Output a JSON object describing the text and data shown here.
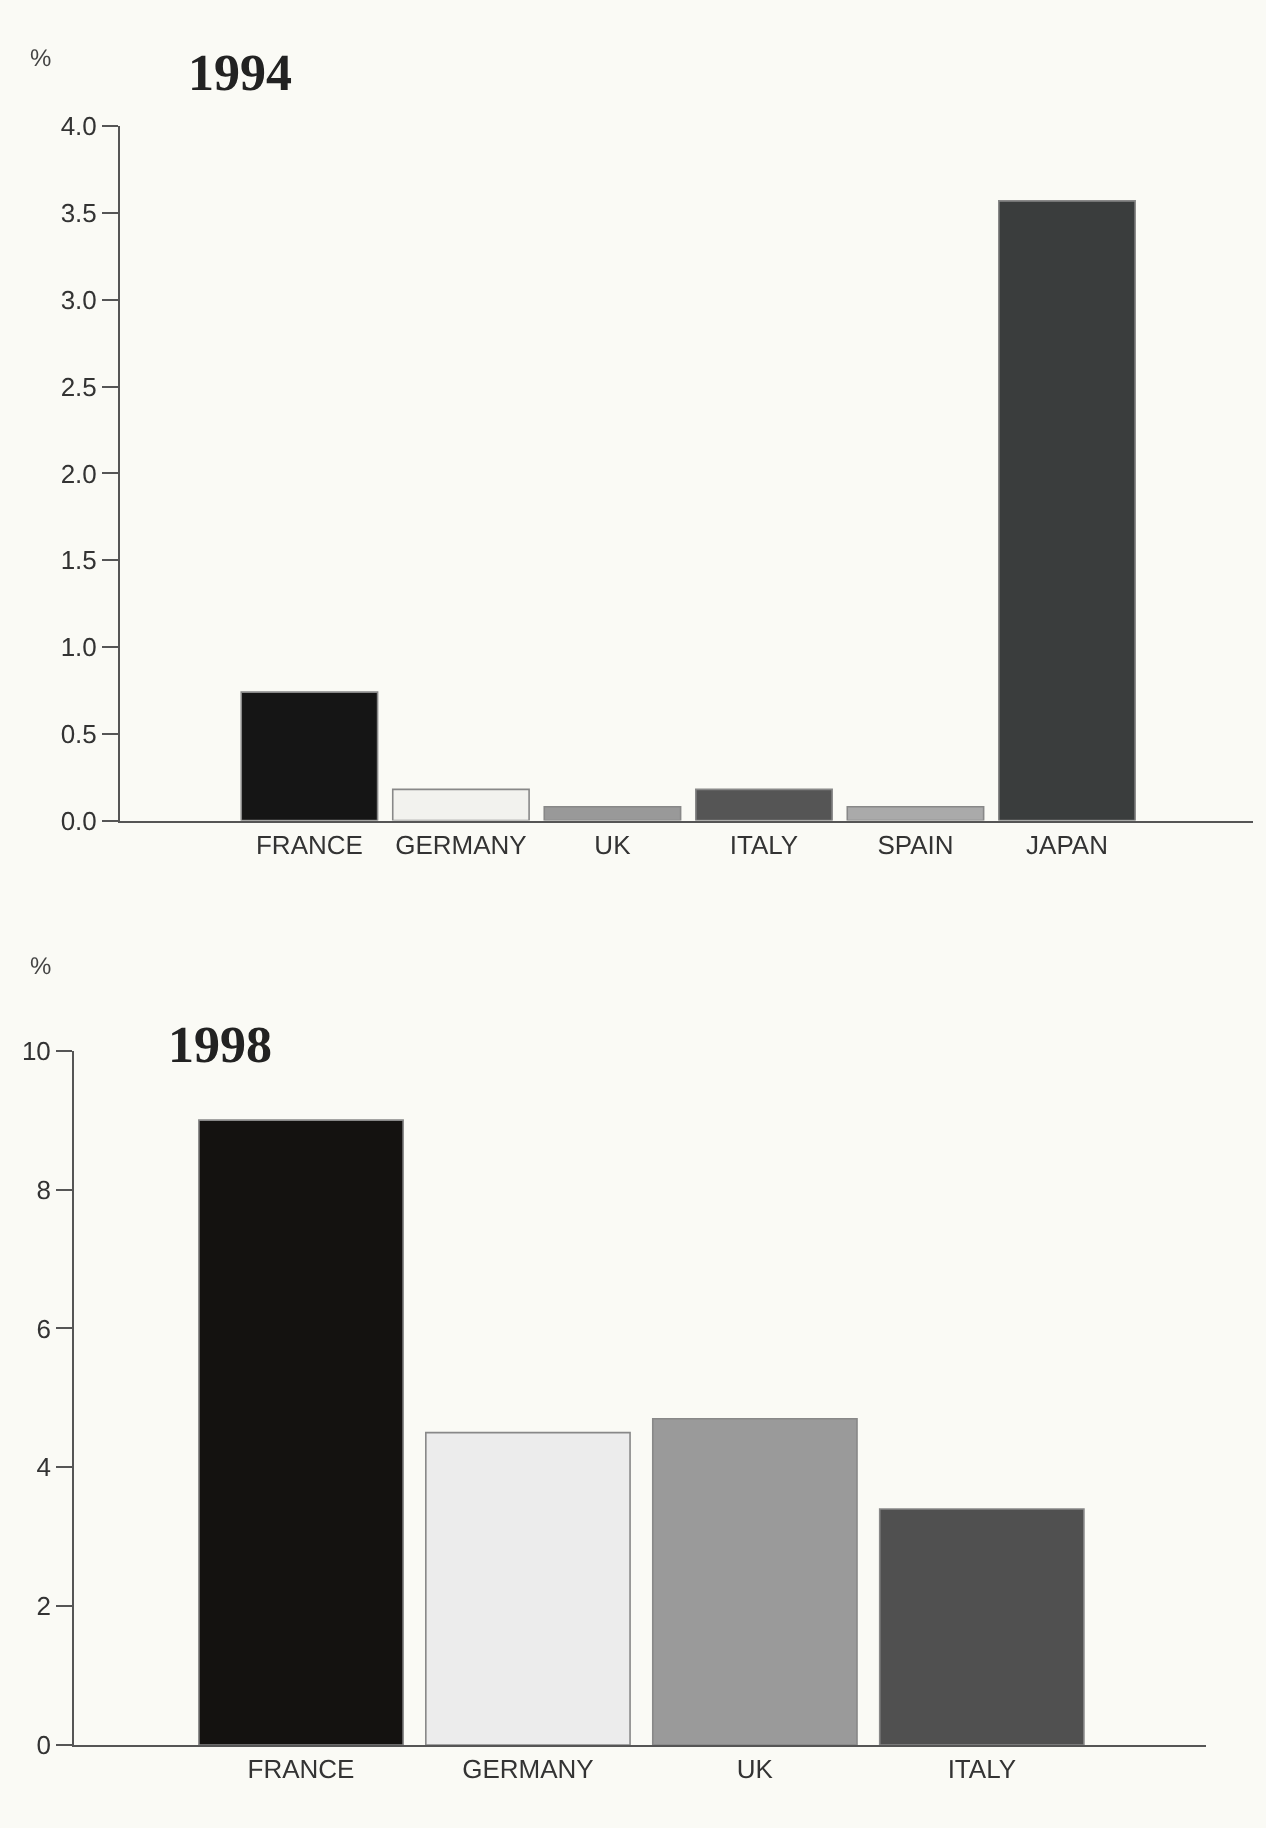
{
  "chart_data": [
    {
      "type": "bar",
      "title": "1994",
      "ylabel": "%",
      "categories": [
        "FRANCE",
        "GERMANY",
        "UK",
        "ITALY",
        "SPAIN",
        "JAPAN"
      ],
      "values": [
        0.74,
        0.18,
        0.08,
        0.18,
        0.08,
        3.57
      ],
      "colors": [
        "#151515",
        "#f2f2ee",
        "#999999",
        "#555555",
        "#aaaaaa",
        "#3a3d3d"
      ],
      "ylim": [
        0,
        4
      ],
      "yticks": [
        {
          "value": 0,
          "label": "0.0"
        },
        0.5,
        {
          "value": 1,
          "label": "1.0"
        },
        1.5,
        {
          "value": 2,
          "label": "2.0"
        },
        2.5,
        {
          "value": 3,
          "label": "3.0"
        },
        3.5,
        {
          "value": 4,
          "label": "4.0"
        }
      ],
      "grid": false
    },
    {
      "type": "bar",
      "title": "1998",
      "ylabel": "%",
      "categories": [
        "FRANCE",
        "GERMANY",
        "UK",
        "ITALY"
      ],
      "values": [
        9.0,
        4.5,
        4.7,
        3.4
      ],
      "colors": [
        "#141210",
        "#ececec",
        "#9a9a9a",
        "#505050"
      ],
      "ylim": [
        0,
        10
      ],
      "yticks": [
        0,
        2,
        4,
        6,
        8,
        10
      ],
      "grid": false
    }
  ]
}
